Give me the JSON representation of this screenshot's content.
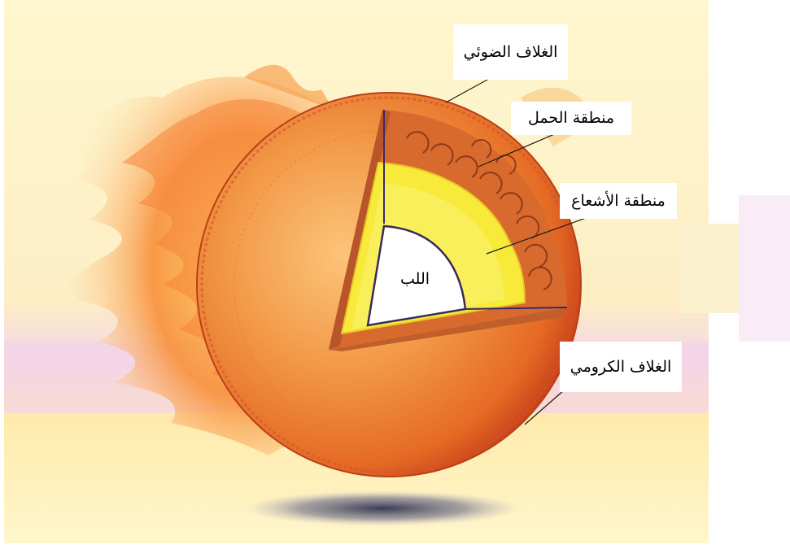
{
  "labels": {
    "photosphere": "الغلاف الضوئي",
    "convection_zone": "منطقة الحمل",
    "radiation_zone": "منطقة الأشعاع",
    "core": "اللب",
    "chromosphere": "الغلاف الكرومي"
  },
  "colors": {
    "background_top": "#fdf4c8",
    "band_pink": "#f1d2ea",
    "sun_outer": "#e8571a",
    "sun_mid": "#f7a24a",
    "radiation_zone": "#f8ec3a",
    "core": "#ffffff",
    "flame": "#f6802e"
  }
}
